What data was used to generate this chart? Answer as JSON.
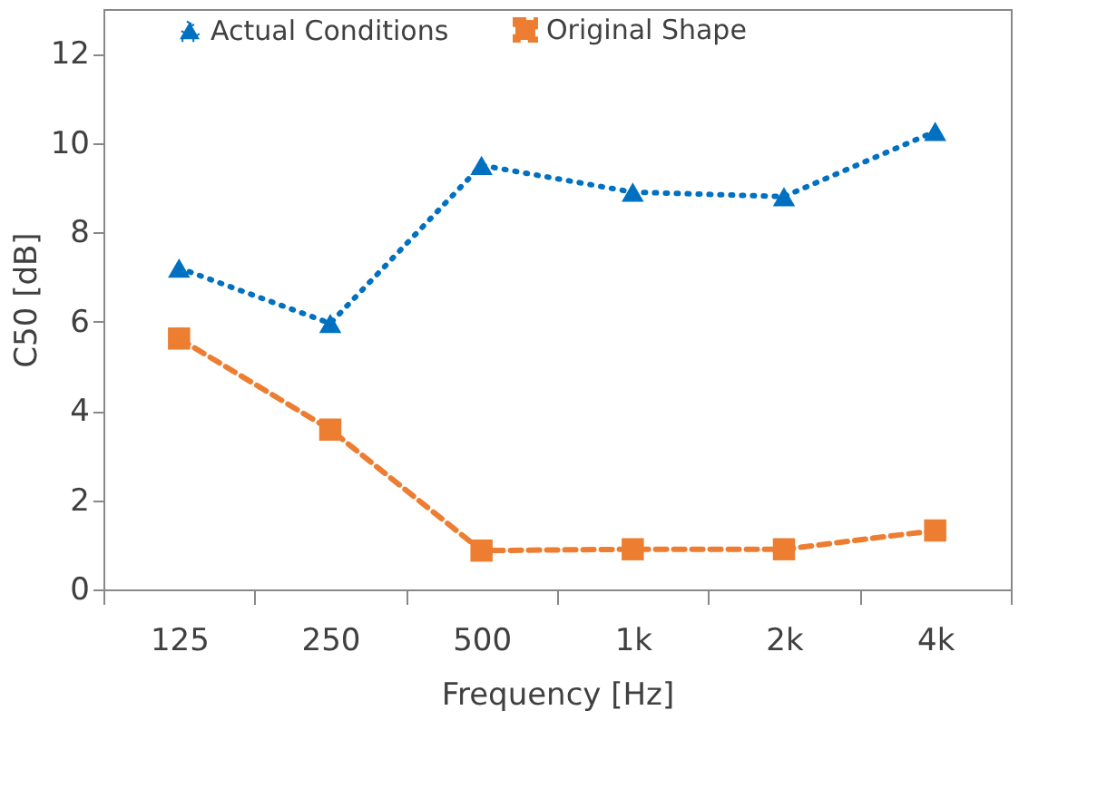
{
  "chart_data": {
    "type": "line",
    "xlabel": "Frequency [Hz]",
    "ylabel": "C50 [dB]",
    "categories": [
      "125",
      "250",
      "500",
      "1k",
      "2k",
      "4k"
    ],
    "series": [
      {
        "name": "Actual Conditions",
        "color": "#0070c0",
        "marker": "triangle",
        "line_style": "dotted",
        "values": [
          7.2,
          5.96,
          9.5,
          8.9,
          8.8,
          10.26
        ]
      },
      {
        "name": "Original Shape",
        "color": "#ed7d31",
        "marker": "square",
        "line_style": "dashed",
        "values": [
          5.62,
          3.58,
          0.87,
          0.9,
          0.9,
          1.32
        ]
      }
    ],
    "ylim": [
      0,
      13
    ],
    "yticks": [
      0,
      2,
      4,
      6,
      8,
      10,
      12
    ],
    "grid": false,
    "legend": "top"
  }
}
